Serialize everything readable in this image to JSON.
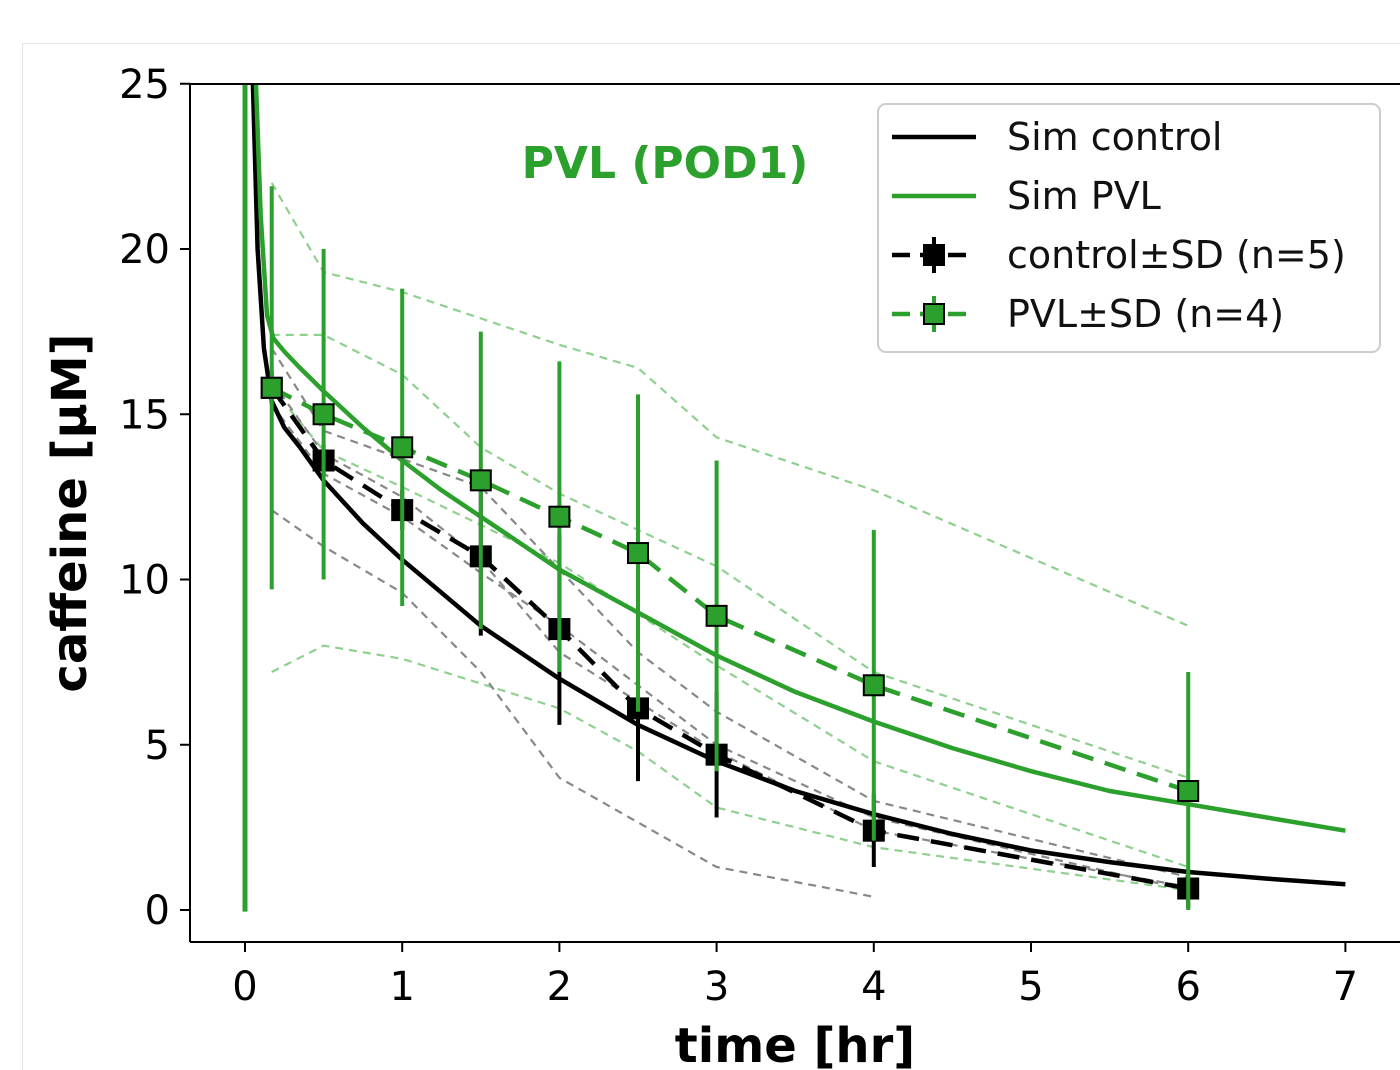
{
  "chart_data": {
    "type": "line",
    "xlabel": "time [hr]",
    "ylabel": "caffeine [µM]",
    "xlim": [
      -0.35,
      7.0
    ],
    "ylim": [
      -1.0,
      25.0
    ],
    "x_ticks": [
      0,
      1,
      2,
      3,
      4,
      5,
      6,
      7
    ],
    "y_ticks": [
      0,
      5,
      10,
      15,
      20,
      25
    ],
    "grid": false,
    "legend_placement": "top-right",
    "annotation": {
      "text": "PVL (POD1)",
      "color": "#2ca02c"
    },
    "colors": {
      "control": "#000000",
      "pvl": "#2ca02c",
      "pvl_light": "#8fd08f",
      "control_light": "#888888"
    },
    "series": [
      {
        "name": "Sim control",
        "kind": "simulation",
        "color": "#000000",
        "x": [
          0.05,
          0.08,
          0.12,
          0.17,
          0.25,
          0.35,
          0.5,
          0.75,
          1.0,
          1.25,
          1.5,
          1.75,
          2.0,
          2.5,
          3.0,
          3.5,
          4.0,
          4.5,
          5.0,
          5.5,
          6.0,
          6.5,
          7.0
        ],
        "y": [
          25.0,
          20.0,
          17.0,
          15.4,
          14.6,
          14.0,
          13.0,
          11.7,
          10.6,
          9.6,
          8.6,
          7.8,
          7.0,
          5.6,
          4.5,
          3.6,
          2.9,
          2.3,
          1.8,
          1.45,
          1.15,
          0.95,
          0.78
        ]
      },
      {
        "name": "Sim PVL",
        "kind": "simulation",
        "color": "#2ca02c",
        "x": [
          0.07,
          0.1,
          0.14,
          0.18,
          0.25,
          0.35,
          0.5,
          0.75,
          1.0,
          1.25,
          1.5,
          1.75,
          2.0,
          2.5,
          3.0,
          3.5,
          4.0,
          4.5,
          5.0,
          5.5,
          6.0,
          6.5,
          7.0
        ],
        "y": [
          25.0,
          21.0,
          18.0,
          17.3,
          16.9,
          16.4,
          15.7,
          14.6,
          13.6,
          12.7,
          11.9,
          11.1,
          10.3,
          9.0,
          7.7,
          6.6,
          5.7,
          4.9,
          4.2,
          3.6,
          3.2,
          2.8,
          2.4
        ]
      },
      {
        "name": "control±SD (n=5)",
        "kind": "mean_sd",
        "color": "#000000",
        "x": [
          0.17,
          0.5,
          1.0,
          1.5,
          2.0,
          2.5,
          3.0,
          4.0,
          6.0
        ],
        "y": [
          15.8,
          13.6,
          12.1,
          10.7,
          8.5,
          6.1,
          4.7,
          2.4,
          0.65
        ],
        "sd": [
          0.5,
          0.5,
          0.6,
          2.4,
          2.9,
          2.2,
          1.9,
          1.1,
          0.6
        ]
      },
      {
        "name": "PVL±SD (n=4)",
        "kind": "mean_sd",
        "color": "#2ca02c",
        "x": [
          0.17,
          0.5,
          1.0,
          1.5,
          2.0,
          2.5,
          3.0,
          4.0,
          6.0
        ],
        "y": [
          15.8,
          15.0,
          14.0,
          13.0,
          11.9,
          10.8,
          8.9,
          6.8,
          3.6
        ],
        "sd": [
          6.1,
          5.0,
          4.8,
          4.5,
          4.7,
          4.8,
          4.7,
          4.7,
          3.6
        ]
      }
    ],
    "individuals": [
      {
        "group": "pvl",
        "x": [
          0.17,
          0.5,
          1.0,
          2.0,
          2.5,
          3.0,
          4.0,
          6.0
        ],
        "y": [
          22.0,
          19.3,
          18.7,
          17.1,
          16.4,
          14.3,
          12.7,
          8.6
        ]
      },
      {
        "group": "pvl",
        "x": [
          0.17,
          0.5,
          1.0,
          1.5,
          2.0,
          3.0,
          4.0,
          6.0
        ],
        "y": [
          17.4,
          17.4,
          16.2,
          14.0,
          12.6,
          10.4,
          7.2,
          4.0
        ]
      },
      {
        "group": "pvl",
        "x": [
          0.17,
          0.5,
          1.0,
          2.0,
          3.0,
          4.0,
          6.0
        ],
        "y": [
          15.8,
          13.9,
          12.8,
          10.5,
          7.4,
          4.5,
          1.3
        ]
      },
      {
        "group": "pvl",
        "x": [
          0.17,
          0.5,
          1.0,
          2.0,
          2.5,
          3.0,
          4.0,
          6.0
        ],
        "y": [
          7.2,
          8.0,
          7.6,
          6.1,
          4.8,
          3.1,
          1.9,
          0.6
        ]
      },
      {
        "group": "control",
        "x": [
          0.17,
          0.5,
          1.5,
          2.5,
          3.0,
          4.0,
          6.0
        ],
        "y": [
          17.0,
          14.5,
          12.8,
          7.8,
          6.0,
          3.3,
          1.0
        ]
      },
      {
        "group": "control",
        "x": [
          0.17,
          0.5,
          1.0,
          1.5,
          2.0,
          3.0,
          4.0,
          6.0
        ],
        "y": [
          16.0,
          13.8,
          12.5,
          10.6,
          7.8,
          4.8,
          2.4,
          0.7
        ]
      },
      {
        "group": "control",
        "x": [
          0.17,
          0.5,
          1.0,
          1.5,
          2.0,
          3.0,
          4.0,
          6.0
        ],
        "y": [
          15.3,
          13.2,
          11.9,
          10.2,
          8.6,
          5.0,
          2.8,
          0.6
        ]
      },
      {
        "group": "control",
        "x": [
          0.17,
          0.5,
          1.0,
          1.5,
          2.0,
          3.0,
          4.0
        ],
        "y": [
          12.1,
          11.0,
          9.6,
          7.2,
          4.0,
          1.3,
          0.4
        ]
      }
    ]
  }
}
